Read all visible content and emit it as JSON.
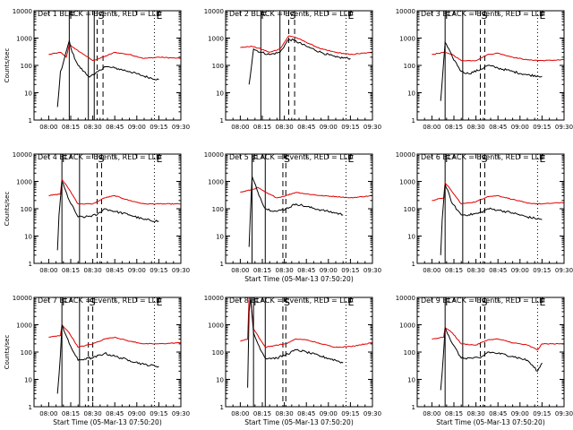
{
  "chart_data": {
    "type": "line",
    "y_scale": "log",
    "ylim": [
      1,
      10000
    ],
    "yticks": [
      "1",
      "10",
      "100",
      "1000",
      "10000"
    ],
    "xticks": [
      "08:00",
      "08:15",
      "08:30",
      "08:45",
      "09:00",
      "09:15",
      "09:30"
    ],
    "series_colors": {
      "events": "#000000",
      "lld": "#e00000"
    },
    "panels": [
      {
        "title": "Det 1 BLACK = Events, RED = LLD",
        "xlabel": "",
        "ylabel": "Counts/sec",
        "markers": [
          "F",
          "S",
          "E"
        ],
        "lines": {
          "solid": [
            "08:14",
            "08:27",
            "08:31"
          ],
          "dashed": [
            "08:33",
            "08:37"
          ],
          "dotted": [
            "09:12"
          ]
        },
        "events": [
          [
            "08:06",
            3
          ],
          [
            "08:08",
            60
          ],
          [
            "08:09",
            80
          ],
          [
            "08:14",
            800
          ],
          [
            "08:16",
            300
          ],
          [
            "08:20",
            100
          ],
          [
            "08:24",
            60
          ],
          [
            "08:27",
            40
          ],
          [
            "08:31",
            45
          ],
          [
            "08:38",
            90
          ],
          [
            "08:45",
            80
          ],
          [
            "08:55",
            60
          ],
          [
            "09:05",
            40
          ],
          [
            "09:15",
            30
          ]
        ],
        "lld": [
          [
            "08:00",
            250
          ],
          [
            "08:08",
            300
          ],
          [
            "08:12",
            200
          ],
          [
            "08:14",
            600
          ],
          [
            "08:18",
            400
          ],
          [
            "08:24",
            250
          ],
          [
            "08:30",
            150
          ],
          [
            "08:37",
            200
          ],
          [
            "08:45",
            300
          ],
          [
            "08:55",
            250
          ],
          [
            "09:05",
            180
          ],
          [
            "09:15",
            200
          ],
          [
            "09:30",
            180
          ]
        ]
      },
      {
        "title": "Det 2 BLACK = Events, RED = LLD",
        "xlabel": "",
        "ylabel": "",
        "markers": [
          "F",
          "S",
          "E"
        ],
        "lines": {
          "solid": [
            "08:14",
            "08:27"
          ],
          "dashed": [
            "08:33",
            "08:37"
          ],
          "dotted": [
            "09:12"
          ]
        },
        "events": [
          [
            "08:06",
            20
          ],
          [
            "08:09",
            400
          ],
          [
            "08:14",
            300
          ],
          [
            "08:20",
            250
          ],
          [
            "08:27",
            300
          ],
          [
            "08:33",
            900
          ],
          [
            "08:37",
            800
          ],
          [
            "08:45",
            500
          ],
          [
            "08:55",
            300
          ],
          [
            "09:05",
            200
          ],
          [
            "09:15",
            180
          ]
        ],
        "lld": [
          [
            "08:00",
            450
          ],
          [
            "08:08",
            500
          ],
          [
            "08:14",
            400
          ],
          [
            "08:20",
            300
          ],
          [
            "08:27",
            400
          ],
          [
            "08:33",
            1200
          ],
          [
            "08:37",
            1100
          ],
          [
            "08:45",
            700
          ],
          [
            "08:55",
            400
          ],
          [
            "09:05",
            300
          ],
          [
            "09:15",
            250
          ],
          [
            "09:30",
            300
          ]
        ]
      },
      {
        "title": "Det 3 BLACK = Events, RED = LLD",
        "xlabel": "",
        "ylabel": "",
        "markers": [
          "F",
          "S",
          "E"
        ],
        "lines": {
          "solid": [
            "08:09",
            "08:21"
          ],
          "dashed": [
            "08:33",
            "08:36"
          ],
          "dotted": [
            "09:12"
          ]
        },
        "events": [
          [
            "08:06",
            5
          ],
          [
            "08:09",
            700
          ],
          [
            "08:14",
            200
          ],
          [
            "08:20",
            60
          ],
          [
            "08:25",
            50
          ],
          [
            "08:33",
            70
          ],
          [
            "08:38",
            100
          ],
          [
            "08:45",
            80
          ],
          [
            "08:55",
            60
          ],
          [
            "09:05",
            45
          ],
          [
            "09:15",
            40
          ]
        ],
        "lld": [
          [
            "08:00",
            250
          ],
          [
            "08:08",
            300
          ],
          [
            "08:14",
            250
          ],
          [
            "08:20",
            150
          ],
          [
            "08:30",
            150
          ],
          [
            "08:38",
            250
          ],
          [
            "08:45",
            280
          ],
          [
            "08:55",
            200
          ],
          [
            "09:05",
            160
          ],
          [
            "09:15",
            150
          ],
          [
            "09:30",
            160
          ]
        ]
      },
      {
        "title": "Det 4 BLACK = Events, RED = LLD",
        "xlabel": "",
        "ylabel": "Counts/sec",
        "markers": [
          "F",
          "S",
          "E"
        ],
        "lines": {
          "solid": [
            "08:09",
            "08:21"
          ],
          "dashed": [
            "08:33",
            "08:36"
          ],
          "dotted": [
            "09:12"
          ]
        },
        "events": [
          [
            "08:06",
            3
          ],
          [
            "08:07",
            60
          ],
          [
            "08:09",
            1000
          ],
          [
            "08:14",
            200
          ],
          [
            "08:20",
            50
          ],
          [
            "08:25",
            50
          ],
          [
            "08:33",
            60
          ],
          [
            "08:38",
            100
          ],
          [
            "08:45",
            80
          ],
          [
            "08:55",
            60
          ],
          [
            "09:05",
            40
          ],
          [
            "09:15",
            35
          ]
        ],
        "lld": [
          [
            "08:00",
            300
          ],
          [
            "08:08",
            350
          ],
          [
            "08:09",
            1200
          ],
          [
            "08:14",
            500
          ],
          [
            "08:20",
            150
          ],
          [
            "08:30",
            150
          ],
          [
            "08:38",
            250
          ],
          [
            "08:45",
            300
          ],
          [
            "08:55",
            200
          ],
          [
            "09:05",
            150
          ],
          [
            "09:15",
            150
          ],
          [
            "09:30",
            150
          ]
        ]
      },
      {
        "title": "Det 5 BLACK = Events, RED = LLD",
        "xlabel": "Start Time (05-Mar-13 07:50:20)",
        "ylabel": "",
        "markers": [
          "F",
          "S",
          "E"
        ],
        "lines": {
          "solid": [
            "08:08",
            "08:17"
          ],
          "dashed": [
            "08:29",
            "08:31"
          ],
          "dotted": [
            "09:12"
          ]
        },
        "events": [
          [
            "08:06",
            4
          ],
          [
            "08:07",
            100
          ],
          [
            "08:08",
            1500
          ],
          [
            "08:12",
            400
          ],
          [
            "08:17",
            100
          ],
          [
            "08:25",
            80
          ],
          [
            "08:31",
            100
          ],
          [
            "08:38",
            150
          ],
          [
            "08:45",
            120
          ],
          [
            "08:55",
            90
          ],
          [
            "09:05",
            70
          ],
          [
            "09:10",
            60
          ]
        ],
        "lld": [
          [
            "08:00",
            400
          ],
          [
            "08:08",
            500
          ],
          [
            "08:12",
            600
          ],
          [
            "08:17",
            400
          ],
          [
            "08:25",
            250
          ],
          [
            "08:31",
            300
          ],
          [
            "08:38",
            400
          ],
          [
            "08:45",
            350
          ],
          [
            "08:55",
            300
          ],
          [
            "09:05",
            280
          ],
          [
            "09:15",
            250
          ],
          [
            "09:30",
            300
          ]
        ]
      },
      {
        "title": "Det 6 BLACK = Events, RED = LLD",
        "xlabel": "",
        "ylabel": "",
        "markers": [
          "F",
          "S",
          "E"
        ],
        "lines": {
          "solid": [
            "08:09",
            "08:21"
          ],
          "dashed": [
            "08:33",
            "08:36"
          ],
          "dotted": [
            "09:12"
          ]
        },
        "events": [
          [
            "08:06",
            2
          ],
          [
            "08:07",
            40
          ],
          [
            "08:09",
            800
          ],
          [
            "08:14",
            150
          ],
          [
            "08:20",
            60
          ],
          [
            "08:25",
            60
          ],
          [
            "08:33",
            70
          ],
          [
            "08:38",
            100
          ],
          [
            "08:45",
            90
          ],
          [
            "08:55",
            70
          ],
          [
            "09:05",
            50
          ],
          [
            "09:15",
            40
          ]
        ],
        "lld": [
          [
            "08:00",
            200
          ],
          [
            "08:08",
            250
          ],
          [
            "08:09",
            900
          ],
          [
            "08:14",
            400
          ],
          [
            "08:20",
            150
          ],
          [
            "08:30",
            180
          ],
          [
            "08:38",
            280
          ],
          [
            "08:45",
            300
          ],
          [
            "08:55",
            220
          ],
          [
            "09:05",
            160
          ],
          [
            "09:15",
            150
          ],
          [
            "09:30",
            170
          ]
        ]
      },
      {
        "title": "Det 7 BLACK = Events, RED = LLD",
        "xlabel": "Start Time (05-Mar-13 07:50:20)",
        "ylabel": "Counts/sec",
        "markers": [
          "F",
          "S",
          "E"
        ],
        "lines": {
          "solid": [
            "08:09",
            "08:21"
          ],
          "dashed": [
            "08:27",
            "08:30"
          ],
          "dotted": [
            "09:12"
          ]
        },
        "events": [
          [
            "08:06",
            3
          ],
          [
            "08:08",
            80
          ],
          [
            "08:09",
            1000
          ],
          [
            "08:14",
            200
          ],
          [
            "08:20",
            50
          ],
          [
            "08:27",
            60
          ],
          [
            "08:30",
            60
          ],
          [
            "08:38",
            90
          ],
          [
            "08:45",
            70
          ],
          [
            "08:55",
            50
          ],
          [
            "09:05",
            35
          ],
          [
            "09:15",
            30
          ]
        ],
        "lld": [
          [
            "08:00",
            350
          ],
          [
            "08:08",
            400
          ],
          [
            "08:09",
            1000
          ],
          [
            "08:14",
            500
          ],
          [
            "08:20",
            150
          ],
          [
            "08:30",
            200
          ],
          [
            "08:38",
            300
          ],
          [
            "08:45",
            350
          ],
          [
            "08:55",
            250
          ],
          [
            "09:05",
            200
          ],
          [
            "09:15",
            200
          ],
          [
            "09:30",
            220
          ]
        ]
      },
      {
        "title": "Det 8 BLACK = Events, RED = LLD",
        "xlabel": "Start Time (05-Mar-13 07:50:20)",
        "ylabel": "",
        "markers": [
          "F",
          "S",
          "E"
        ],
        "lines": {
          "solid": [
            "08:09",
            "08:17"
          ],
          "dashed": [
            "08:29",
            "08:31"
          ],
          "dotted": [
            "09:12"
          ]
        },
        "events": [
          [
            "08:05",
            5
          ],
          [
            "08:06",
            3000
          ],
          [
            "08:07",
            10000
          ],
          [
            "08:09",
            500
          ],
          [
            "08:12",
            200
          ],
          [
            "08:17",
            60
          ],
          [
            "08:25",
            60
          ],
          [
            "08:31",
            80
          ],
          [
            "08:38",
            120
          ],
          [
            "08:45",
            100
          ],
          [
            "08:55",
            70
          ],
          [
            "09:05",
            50
          ],
          [
            "09:10",
            40
          ]
        ],
        "lld": [
          [
            "08:00",
            250
          ],
          [
            "08:05",
            300
          ],
          [
            "08:06",
            10000
          ],
          [
            "08:07",
            10000
          ],
          [
            "08:09",
            700
          ],
          [
            "08:12",
            400
          ],
          [
            "08:17",
            150
          ],
          [
            "08:25",
            180
          ],
          [
            "08:31",
            200
          ],
          [
            "08:38",
            300
          ],
          [
            "08:45",
            280
          ],
          [
            "08:55",
            200
          ],
          [
            "09:05",
            150
          ],
          [
            "09:15",
            160
          ],
          [
            "09:30",
            220
          ]
        ]
      },
      {
        "title": "Det 9 BLACK = Events, RED = LLD",
        "xlabel": "Start Time (05-Mar-13 07:50:20)",
        "ylabel": "",
        "markers": [
          "F",
          "S",
          "E"
        ],
        "lines": {
          "solid": [
            "08:09",
            "08:21"
          ],
          "dashed": [
            "08:33",
            "08:36"
          ],
          "dotted": [
            "09:12"
          ]
        },
        "events": [
          [
            "08:06",
            4
          ],
          [
            "08:08",
            100
          ],
          [
            "08:09",
            800
          ],
          [
            "08:14",
            200
          ],
          [
            "08:20",
            60
          ],
          [
            "08:27",
            60
          ],
          [
            "08:33",
            60
          ],
          [
            "08:38",
            100
          ],
          [
            "08:45",
            90
          ],
          [
            "08:55",
            70
          ],
          [
            "09:05",
            50
          ],
          [
            "09:12",
            20
          ],
          [
            "09:15",
            40
          ]
        ],
        "lld": [
          [
            "08:00",
            300
          ],
          [
            "08:08",
            350
          ],
          [
            "08:09",
            800
          ],
          [
            "08:14",
            500
          ],
          [
            "08:20",
            200
          ],
          [
            "08:30",
            180
          ],
          [
            "08:38",
            280
          ],
          [
            "08:45",
            300
          ],
          [
            "08:55",
            220
          ],
          [
            "09:05",
            180
          ],
          [
            "09:12",
            120
          ],
          [
            "09:15",
            200
          ],
          [
            "09:30",
            200
          ]
        ]
      }
    ]
  }
}
